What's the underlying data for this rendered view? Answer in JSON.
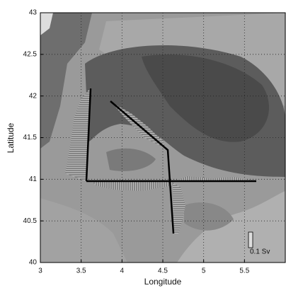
{
  "chart_data": {
    "type": "map",
    "xlabel": "Longitude",
    "ylabel": "Latitude",
    "xlim": [
      3,
      6
    ],
    "ylim": [
      40,
      43
    ],
    "xticks": [
      3,
      3.5,
      4,
      4.5,
      5,
      5.5
    ],
    "yticks": [
      40,
      40.5,
      41,
      41.5,
      42,
      42.5,
      43
    ],
    "grid": true,
    "annotation": "0.1 Sv"
  }
}
